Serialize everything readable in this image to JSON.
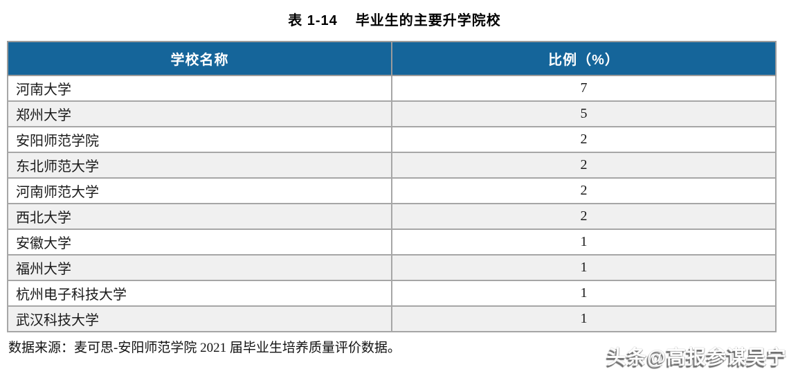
{
  "title": {
    "label": "表 1-14",
    "text": "毕业生的主要升学院校"
  },
  "table": {
    "headers": [
      "学校名称",
      "比例（%）"
    ],
    "rows": [
      {
        "school": "河南大学",
        "ratio": "7"
      },
      {
        "school": "郑州大学",
        "ratio": "5"
      },
      {
        "school": "安阳师范学院",
        "ratio": "2"
      },
      {
        "school": "东北师范大学",
        "ratio": "2"
      },
      {
        "school": "河南师范大学",
        "ratio": "2"
      },
      {
        "school": "西北大学",
        "ratio": "2"
      },
      {
        "school": "安徽大学",
        "ratio": "1"
      },
      {
        "school": "福州大学",
        "ratio": "1"
      },
      {
        "school": "杭州电子科技大学",
        "ratio": "1"
      },
      {
        "school": "武汉科技大学",
        "ratio": "1"
      }
    ]
  },
  "footer": {
    "source": "数据来源：麦可思-安阳师范学院 2021 届毕业生培养质量评价数据。"
  },
  "watermark": {
    "text": "头条@高报参谋吴宁"
  },
  "colors": {
    "header_bg": "#15659A",
    "header_text": "#FFFFFF",
    "row_alt_bg": "#F0F0F0",
    "border": "#A6A6A6"
  }
}
